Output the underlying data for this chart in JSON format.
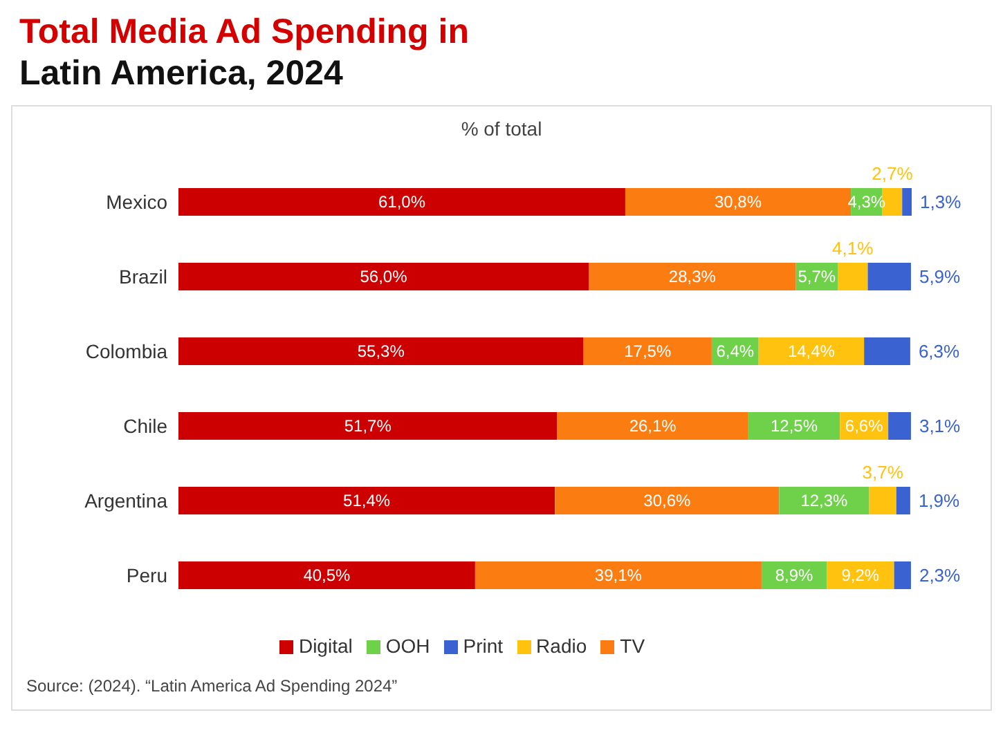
{
  "chart_data": {
    "type": "bar",
    "orientation": "horizontal",
    "stacked": true,
    "title": "Total Media Ad Spending in Latin America, 2024",
    "subtitle": "% of total",
    "annotations": [
      "Source: (2024). “Latin America Ad Spending 2024”"
    ],
    "categories": [
      "Mexico",
      "Brazil",
      "Colombia",
      "Chile",
      "Argentina",
      "Peru"
    ],
    "series": [
      {
        "name": "Digital",
        "color": "#cc0000",
        "values": [
          61.0,
          56.0,
          55.3,
          51.7,
          51.4,
          40.5
        ],
        "value_labels": [
          "61,0%",
          "56,0%",
          "55,3%",
          "51,7%",
          "51,4%",
          "40,5%"
        ]
      },
      {
        "name": "TV",
        "color": "#fb7d12",
        "values": [
          30.8,
          28.3,
          17.5,
          26.1,
          30.6,
          39.1
        ],
        "value_labels": [
          "30,8%",
          "28,3%",
          "17,5%",
          "26,1%",
          "30,6%",
          "39,1%"
        ]
      },
      {
        "name": "OOH",
        "color": "#6fd14a",
        "values": [
          4.3,
          5.7,
          6.4,
          12.5,
          12.3,
          8.9
        ],
        "value_labels": [
          "4,3%",
          "5,7%",
          "6,4%",
          "12,5%",
          "12,3%",
          "8,9%"
        ]
      },
      {
        "name": "Radio",
        "color": "#ffc20e",
        "values": [
          2.7,
          4.1,
          14.4,
          6.6,
          3.7,
          9.2
        ],
        "value_labels": [
          "2,7%",
          "4,1%",
          "14,4%",
          "6,6%",
          "3,7%",
          "9,2%"
        ]
      },
      {
        "name": "Print",
        "color": "#3a62d0",
        "values": [
          1.3,
          5.9,
          6.3,
          3.1,
          1.9,
          2.3
        ],
        "value_labels": [
          "1,3%",
          "5,9%",
          "6,3%",
          "3,1%",
          "1,9%",
          "2,3%"
        ]
      }
    ],
    "legend": "bottom",
    "tick_labels": "y",
    "grid": false
  }
}
